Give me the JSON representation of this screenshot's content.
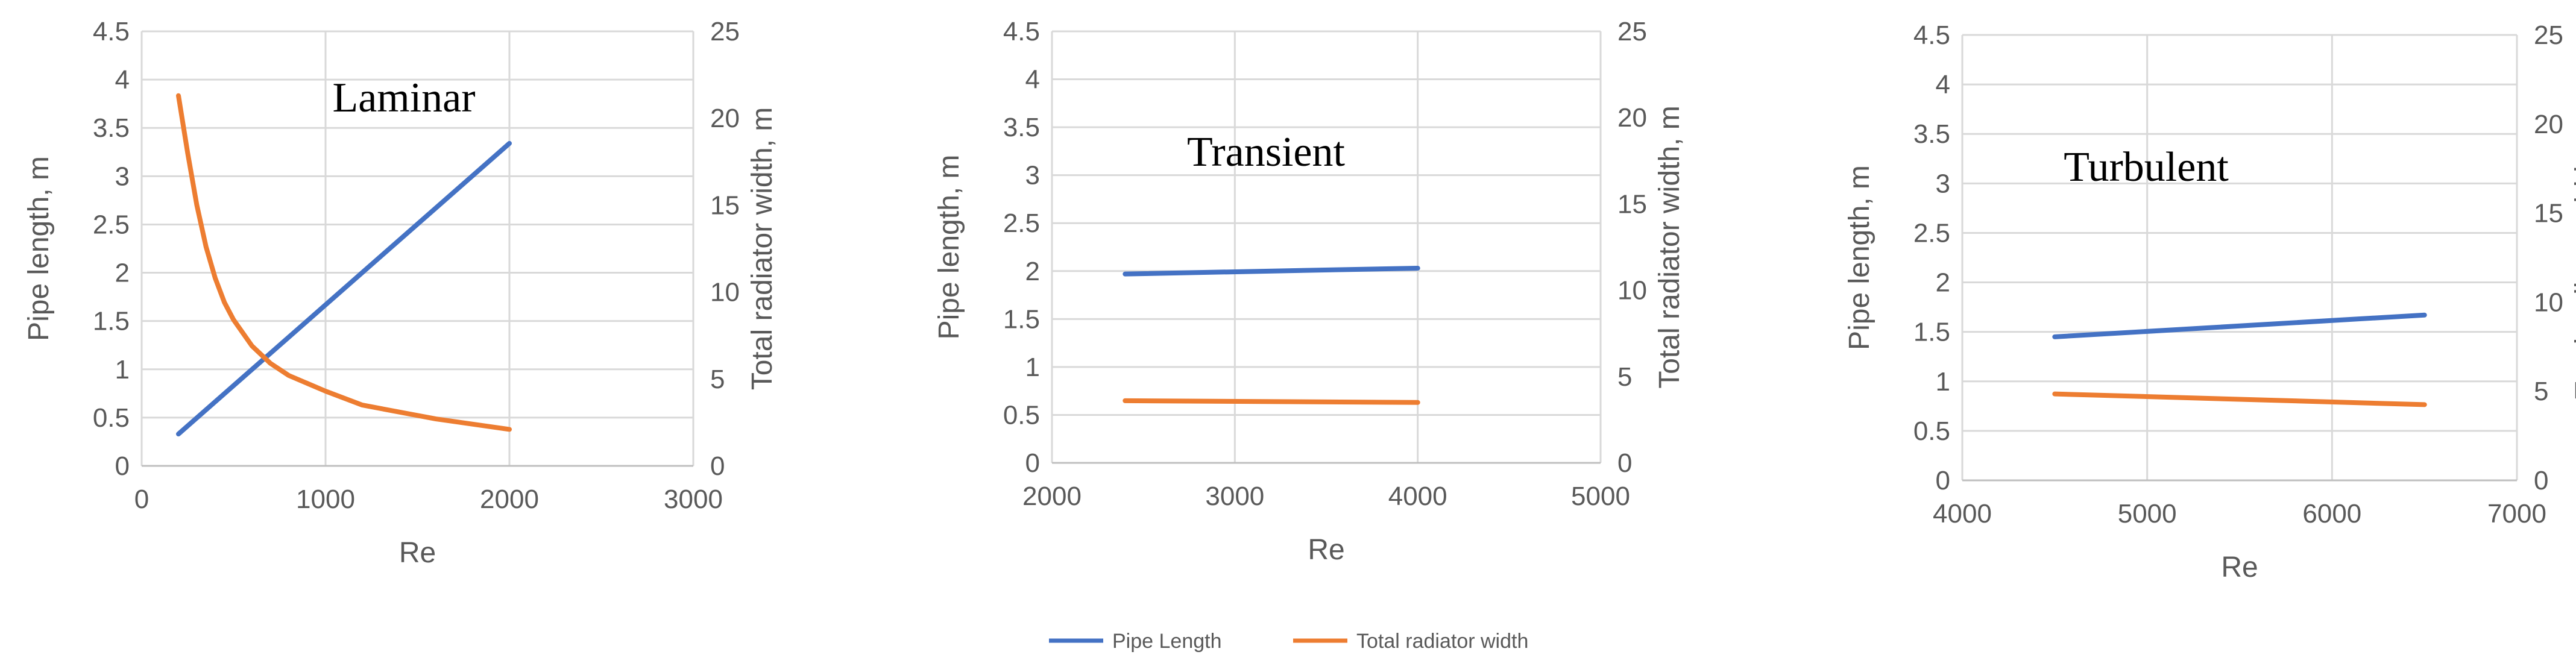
{
  "colors": {
    "pipe_length": "#4472C4",
    "radiator_width": "#ED7D31"
  },
  "legend": [
    {
      "label": "Pipe Length",
      "color": "#4472C4"
    },
    {
      "label": "Total radiator width",
      "color": "#ED7D31"
    }
  ],
  "chart_data": [
    {
      "type": "line",
      "annotation": "Laminar",
      "xlabel": "Re",
      "ylabel": "Pipe length, m",
      "y2label": "Total radiator width, m",
      "xlim": [
        0,
        3000
      ],
      "xticks": [
        0,
        1000,
        2000,
        3000
      ],
      "ylim": [
        0,
        4.5
      ],
      "yticks": [
        "0",
        "0.5",
        "1",
        "1.5",
        "2",
        "2.5",
        "3",
        "3.5",
        "4",
        "4.5"
      ],
      "y2lim": [
        0,
        25
      ],
      "y2ticks": [
        "0",
        "5",
        "10",
        "15",
        "20",
        "25"
      ],
      "grid": true,
      "series": [
        {
          "name": "Pipe Length",
          "axis": "left",
          "x": [
            200,
            2000
          ],
          "y": [
            0.33,
            3.34
          ]
        },
        {
          "name": "Total radiator width",
          "axis": "right",
          "x": [
            200,
            250,
            300,
            350,
            400,
            450,
            500,
            600,
            700,
            800,
            1000,
            1200,
            1600,
            2000
          ],
          "y": [
            21.3,
            18.0,
            15.0,
            12.6,
            10.8,
            9.4,
            8.4,
            6.9,
            5.9,
            5.2,
            4.3,
            3.5,
            2.7,
            2.1
          ]
        }
      ]
    },
    {
      "type": "line",
      "annotation": "Transient",
      "xlabel": "Re",
      "ylabel": "Pipe length, m",
      "y2label": "Total radiator width, m",
      "xlim": [
        2000,
        5000
      ],
      "xticks": [
        2000,
        3000,
        4000,
        5000
      ],
      "ylim": [
        0,
        4.5
      ],
      "yticks": [
        "0",
        "0.5",
        "1",
        "1.5",
        "2",
        "2.5",
        "3",
        "3.5",
        "4",
        "4.5"
      ],
      "y2lim": [
        0,
        25
      ],
      "y2ticks": [
        "0",
        "5",
        "10",
        "15",
        "20",
        "25"
      ],
      "grid": true,
      "series": [
        {
          "name": "Pipe Length",
          "axis": "left",
          "x": [
            2400,
            4000
          ],
          "y": [
            1.97,
            2.03
          ]
        },
        {
          "name": "Total radiator width",
          "axis": "right",
          "x": [
            2400,
            4000
          ],
          "y": [
            3.6,
            3.5
          ]
        }
      ]
    },
    {
      "type": "line",
      "annotation": "Turbulent",
      "xlabel": "Re",
      "ylabel": "Pipe length, m",
      "y2label": "Total radiator width, m",
      "xlim": [
        4000,
        7000
      ],
      "xticks": [
        4000,
        5000,
        6000,
        7000
      ],
      "ylim": [
        0,
        4.5
      ],
      "yticks": [
        "0",
        "0.5",
        "1",
        "1.5",
        "2",
        "2.5",
        "3",
        "3.5",
        "4",
        "4.5"
      ],
      "y2lim": [
        0,
        25
      ],
      "y2ticks": [
        "0",
        "5",
        "10",
        "15",
        "20",
        "25"
      ],
      "grid": true,
      "series": [
        {
          "name": "Pipe Length",
          "axis": "left",
          "x": [
            4500,
            6500
          ],
          "y": [
            1.45,
            1.67
          ]
        },
        {
          "name": "Total radiator width",
          "axis": "right",
          "x": [
            4500,
            6500
          ],
          "y": [
            4.85,
            4.25
          ]
        }
      ]
    }
  ]
}
